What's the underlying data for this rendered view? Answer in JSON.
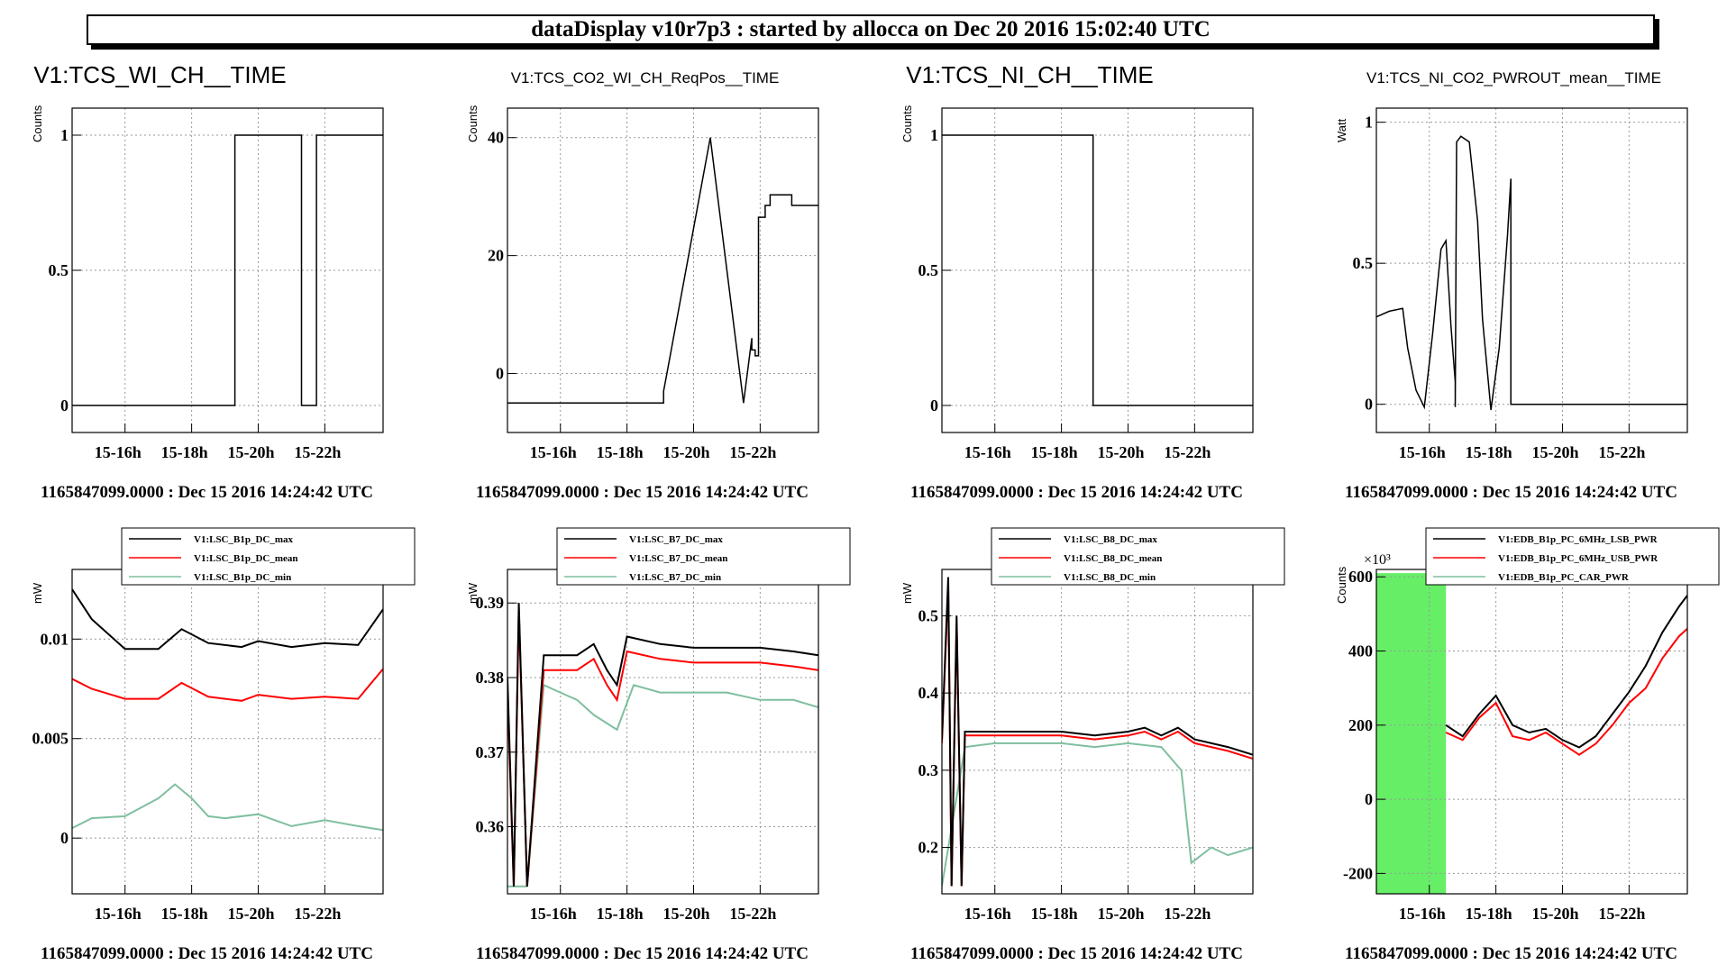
{
  "banner": "dataDisplay v10r7p3 : started by allocca on Dec 20 2016 15:02:40 UTC",
  "colors": {
    "max": "#000000",
    "mean": "#ff0000",
    "min": "#7fbf9f",
    "band": "#66ee66"
  },
  "chart_data": [
    {
      "type": "line",
      "title": "V1:TCS_WI_CH__TIME",
      "ylabel": "Counts",
      "footer": "1165847099.0000 : Dec 15 2016 14:24:42 UTC",
      "x_ticks": [
        "15-16h",
        "15-18h",
        "15-20h",
        "15-22h"
      ],
      "x_tick_hours": [
        16,
        18,
        20,
        22
      ],
      "xlim_hours": [
        14.41,
        23.75
      ],
      "ylim": [
        -0.1,
        1.1
      ],
      "y_ticks": [
        0,
        0.5,
        1
      ],
      "y_tick_labels": [
        "0",
        "0.5",
        "1"
      ],
      "grid": true,
      "series": [
        {
          "x": [
            14.41,
            19.3,
            19.3,
            19.35,
            19.35,
            21.3,
            21.3,
            21.75,
            21.75,
            23.75
          ],
          "y": [
            0,
            0,
            1,
            1,
            1,
            1,
            0,
            0,
            1,
            1
          ]
        }
      ]
    },
    {
      "type": "line",
      "title": "V1:TCS_CO2_WI_CH_ReqPos__TIME",
      "ylabel": "Counts",
      "footer": "1165847099.0000 : Dec 15 2016 14:24:42 UTC",
      "x_ticks": [
        "15-16h",
        "15-18h",
        "15-20h",
        "15-22h"
      ],
      "x_tick_hours": [
        16,
        18,
        20,
        22
      ],
      "xlim_hours": [
        14.41,
        23.75
      ],
      "ylim": [
        -10,
        45
      ],
      "y_ticks": [
        0,
        20,
        40
      ],
      "y_tick_labels": [
        "0",
        "20",
        "40"
      ],
      "grid": true,
      "series": [
        {
          "x": [
            14.41,
            19.1,
            19.1,
            19.2,
            20.5,
            21.5,
            21.75,
            21.75,
            21.85,
            21.85,
            21.95,
            21.95,
            22.15,
            22.15,
            22.3,
            22.3,
            22.45,
            22.45,
            22.95,
            22.95,
            23.75
          ],
          "y": [
            -5,
            -5,
            -3,
            0,
            40,
            -5,
            6,
            4,
            4,
            3,
            3,
            26.5,
            26.5,
            28.5,
            28.5,
            30.3,
            30.3,
            30.3,
            30.3,
            28.5,
            28.5
          ]
        }
      ]
    },
    {
      "type": "line",
      "title": "V1:TCS_NI_CH__TIME",
      "ylabel": "Counts",
      "footer": "1165847099.0000 : Dec 15 2016 14:24:42 UTC",
      "x_ticks": [
        "15-16h",
        "15-18h",
        "15-20h",
        "15-22h"
      ],
      "x_tick_hours": [
        16,
        18,
        20,
        22
      ],
      "xlim_hours": [
        14.41,
        23.75
      ],
      "ylim": [
        -0.1,
        1.1
      ],
      "y_ticks": [
        0,
        0.5,
        1
      ],
      "y_tick_labels": [
        "0",
        "0.5",
        "1"
      ],
      "grid": true,
      "series": [
        {
          "x": [
            14.41,
            18.95,
            18.95,
            23.75
          ],
          "y": [
            1,
            1,
            0,
            0
          ]
        }
      ]
    },
    {
      "type": "line",
      "title": "V1:TCS_NI_CO2_PWROUT_mean__TIME",
      "ylabel": "Watt",
      "footer": "1165847099.0000 : Dec 15 2016 14:24:42 UTC",
      "x_ticks": [
        "15-16h",
        "15-18h",
        "15-20h",
        "15-22h"
      ],
      "x_tick_hours": [
        16,
        18,
        20,
        22
      ],
      "xlim_hours": [
        14.41,
        23.75
      ],
      "ylim": [
        -0.1,
        1.05
      ],
      "y_ticks": [
        0,
        0.5,
        1
      ],
      "y_tick_labels": [
        "0",
        "0.5",
        "1"
      ],
      "grid": true,
      "series": [
        {
          "x": [
            14.41,
            14.8,
            15.2,
            15.35,
            15.6,
            15.85,
            16.1,
            16.35,
            16.5,
            16.65,
            16.78,
            16.78,
            16.82,
            16.82,
            16.95,
            17.2,
            17.45,
            17.6,
            17.85,
            18.1,
            18.35,
            18.45,
            18.45,
            23.75
          ],
          "y": [
            0.31,
            0.33,
            0.34,
            0.2,
            0.05,
            -0.01,
            0.25,
            0.55,
            0.58,
            0.28,
            0.08,
            -0.01,
            0.93,
            0.93,
            0.95,
            0.93,
            0.65,
            0.3,
            -0.02,
            0.2,
            0.6,
            0.8,
            0.0,
            0.0
          ]
        }
      ]
    },
    {
      "type": "line",
      "ylabel": "mW",
      "footer": "1165847099.0000 : Dec 15 2016 14:24:42 UTC",
      "x_ticks": [
        "15-16h",
        "15-18h",
        "15-20h",
        "15-22h"
      ],
      "x_tick_hours": [
        16,
        18,
        20,
        22
      ],
      "xlim_hours": [
        14.41,
        23.75
      ],
      "ylim": [
        -0.0028,
        0.0135
      ],
      "y_ticks": [
        0,
        0.005,
        0.01
      ],
      "y_tick_labels": [
        "0",
        "0.005",
        "0.01"
      ],
      "grid": true,
      "legend": [
        "V1:LSC_B1p_DC_max",
        "V1:LSC_B1p_DC_mean",
        "V1:LSC_B1p_DC_min"
      ],
      "series": [
        {
          "name": "V1:LSC_B1p_DC_max",
          "x": [
            14.41,
            15,
            16,
            17,
            17.7,
            18.5,
            19.5,
            20,
            21,
            22,
            23,
            23.75
          ],
          "y": [
            0.0125,
            0.011,
            0.0095,
            0.0095,
            0.0105,
            0.0098,
            0.0096,
            0.0099,
            0.0096,
            0.0098,
            0.0097,
            0.0115
          ]
        },
        {
          "name": "V1:LSC_B1p_DC_mean",
          "x": [
            14.41,
            15,
            16,
            17,
            17.7,
            18.5,
            19.5,
            20,
            21,
            22,
            23,
            23.75
          ],
          "y": [
            0.008,
            0.0075,
            0.007,
            0.007,
            0.0078,
            0.0071,
            0.0069,
            0.0072,
            0.007,
            0.0071,
            0.007,
            0.0085
          ]
        },
        {
          "name": "V1:LSC_B1p_DC_min",
          "x": [
            14.41,
            15,
            16,
            17,
            17.5,
            18,
            18.5,
            19,
            20,
            21,
            22,
            23,
            23.75
          ],
          "y": [
            0.0005,
            0.001,
            0.0011,
            0.002,
            0.0027,
            0.002,
            0.0011,
            0.001,
            0.0012,
            0.0006,
            0.0009,
            0.0006,
            0.0004
          ]
        }
      ]
    },
    {
      "type": "line",
      "ylabel": "mW",
      "footer": "1165847099.0000 : Dec 15 2016 14:24:42 UTC",
      "x_ticks": [
        "15-16h",
        "15-18h",
        "15-20h",
        "15-22h"
      ],
      "x_tick_hours": [
        16,
        18,
        20,
        22
      ],
      "xlim_hours": [
        14.41,
        23.75
      ],
      "ylim": [
        0.351,
        0.3945
      ],
      "y_ticks": [
        0.36,
        0.37,
        0.38,
        0.39
      ],
      "y_tick_labels": [
        "0.36",
        "0.37",
        "0.38",
        "0.39"
      ],
      "grid": true,
      "legend": [
        "V1:LSC_B7_DC_max",
        "V1:LSC_B7_DC_mean",
        "V1:LSC_B7_DC_min"
      ],
      "series": [
        {
          "name": "V1:LSC_B7_DC_max",
          "x": [
            14.41,
            14.6,
            14.75,
            15.0,
            15.5,
            16.5,
            17.0,
            17.4,
            17.7,
            18.0,
            19,
            20,
            21,
            22,
            23,
            23.75
          ],
          "y": [
            0.38,
            0.352,
            0.39,
            0.352,
            0.383,
            0.383,
            0.3845,
            0.381,
            0.379,
            0.3855,
            0.3845,
            0.384,
            0.384,
            0.384,
            0.3835,
            0.383
          ]
        },
        {
          "name": "V1:LSC_B7_DC_mean",
          "x": [
            14.41,
            14.6,
            14.75,
            15.0,
            15.5,
            16.5,
            17.0,
            17.4,
            17.7,
            18.0,
            19,
            20,
            21,
            22,
            23,
            23.75
          ],
          "y": [
            0.378,
            0.352,
            0.389,
            0.352,
            0.381,
            0.381,
            0.3825,
            0.379,
            0.377,
            0.3835,
            0.3825,
            0.382,
            0.382,
            0.382,
            0.3815,
            0.381
          ]
        },
        {
          "name": "V1:LSC_B7_DC_min",
          "x": [
            14.41,
            15.0,
            15.5,
            16,
            16.5,
            17,
            17.7,
            18.2,
            19,
            20,
            21,
            22,
            23,
            23.75
          ],
          "y": [
            0.352,
            0.352,
            0.379,
            0.378,
            0.377,
            0.375,
            0.373,
            0.379,
            0.378,
            0.378,
            0.378,
            0.377,
            0.377,
            0.376
          ]
        }
      ]
    },
    {
      "type": "line",
      "ylabel": "mW",
      "footer": "1165847099.0000 : Dec 15 2016 14:24:42 UTC",
      "x_ticks": [
        "15-16h",
        "15-18h",
        "15-20h",
        "15-22h"
      ],
      "x_tick_hours": [
        16,
        18,
        20,
        22
      ],
      "xlim_hours": [
        14.41,
        23.75
      ],
      "ylim": [
        0.14,
        0.56
      ],
      "y_ticks": [
        0.2,
        0.3,
        0.4,
        0.5
      ],
      "y_tick_labels": [
        "0.2",
        "0.3",
        "0.4",
        "0.5"
      ],
      "grid": true,
      "legend": [
        "V1:LSC_B8_DC_max",
        "V1:LSC_B8_DC_mean",
        "V1:LSC_B8_DC_min"
      ],
      "series": [
        {
          "name": "V1:LSC_B8_DC_max",
          "x": [
            14.41,
            14.6,
            14.7,
            14.85,
            15.0,
            15.1,
            16,
            17,
            18,
            19,
            20,
            20.5,
            21,
            21.5,
            22,
            23,
            23.75
          ],
          "y": [
            0.34,
            0.55,
            0.15,
            0.5,
            0.15,
            0.35,
            0.35,
            0.35,
            0.35,
            0.345,
            0.35,
            0.355,
            0.345,
            0.355,
            0.34,
            0.33,
            0.32
          ]
        },
        {
          "name": "V1:LSC_B8_DC_mean",
          "x": [
            14.41,
            14.6,
            14.7,
            14.85,
            15.0,
            15.1,
            16,
            17,
            18,
            19,
            20,
            20.5,
            21,
            21.5,
            22,
            23,
            23.75
          ],
          "y": [
            0.335,
            0.54,
            0.15,
            0.49,
            0.15,
            0.345,
            0.345,
            0.345,
            0.345,
            0.34,
            0.345,
            0.35,
            0.34,
            0.35,
            0.335,
            0.325,
            0.315
          ]
        },
        {
          "name": "V1:LSC_B8_DC_min",
          "x": [
            14.41,
            15.1,
            16,
            17,
            18,
            19,
            20,
            21,
            21.6,
            21.9,
            22.5,
            23,
            23.75
          ],
          "y": [
            0.15,
            0.33,
            0.335,
            0.335,
            0.335,
            0.33,
            0.335,
            0.33,
            0.3,
            0.18,
            0.2,
            0.19,
            0.2
          ]
        }
      ]
    },
    {
      "type": "line",
      "ylabel": "Counts",
      "y_exponent": "×10³",
      "footer": "1165847099.0000 : Dec 15 2016 14:24:42 UTC",
      "x_ticks": [
        "15-16h",
        "15-18h",
        "15-20h",
        "15-22h"
      ],
      "x_tick_hours": [
        16,
        18,
        20,
        22
      ],
      "xlim_hours": [
        14.41,
        23.75
      ],
      "ylim": [
        -255,
        620
      ],
      "y_ticks": [
        -200,
        0,
        200,
        400,
        600
      ],
      "y_tick_labels": [
        "-200",
        "0",
        "200",
        "400",
        "600"
      ],
      "grid": true,
      "legend": [
        "V1:EDB_B1p_PC_6MHz_LSB_PWR",
        "V1:EDB_B1p_PC_6MHz_USB_PWR",
        "V1:EDB_B1p_PC_CAR_PWR"
      ],
      "band": {
        "x": [
          14.41,
          16.5
        ],
        "y": [
          -255,
          610
        ]
      },
      "series": [
        {
          "name": "V1:EDB_B1p_PC_6MHz_LSB_PWR",
          "x": [
            16.5,
            17,
            17.5,
            18,
            18.5,
            19,
            19.5,
            20,
            20.5,
            21,
            21.5,
            22,
            22.5,
            23,
            23.5,
            23.75
          ],
          "y": [
            200,
            170,
            230,
            280,
            200,
            180,
            190,
            160,
            140,
            170,
            230,
            290,
            360,
            450,
            520,
            550
          ]
        },
        {
          "name": "V1:EDB_B1p_PC_6MHz_USB_PWR",
          "x": [
            16.5,
            17,
            17.5,
            18,
            18.5,
            19,
            19.5,
            20,
            20.5,
            21,
            21.5,
            22,
            22.5,
            23,
            23.5,
            23.75
          ],
          "y": [
            180,
            160,
            220,
            260,
            170,
            160,
            180,
            150,
            120,
            150,
            200,
            260,
            300,
            380,
            440,
            460
          ]
        }
      ]
    }
  ]
}
